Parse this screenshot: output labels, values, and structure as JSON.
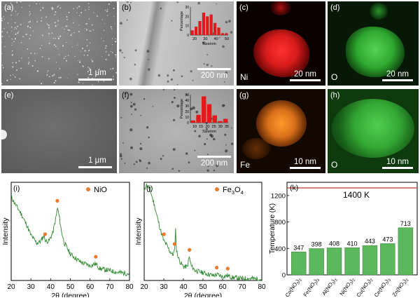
{
  "panels": {
    "a": {
      "label": "(a)",
      "scale": "1 μm"
    },
    "b": {
      "label": "(b)",
      "scale": "200 nm",
      "hist": {
        "ylabel": "Percentage",
        "xlabel": "Size/nm",
        "yticks": [
          "0",
          "10",
          "20",
          "30"
        ],
        "xticks": [
          "20",
          "30",
          "40",
          "50"
        ],
        "values": [
          5,
          9,
          15,
          24,
          20,
          22,
          13,
          8,
          2,
          2
        ]
      }
    },
    "c": {
      "label": "(c)",
      "element": "Ni",
      "scale": "20 nm"
    },
    "d": {
      "label": "(d)",
      "element": "O",
      "scale": "20 nm"
    },
    "e": {
      "label": "(e)",
      "scale": "1 μm"
    },
    "f": {
      "label": "(f)",
      "scale": "200 nm",
      "hist": {
        "ylabel": "Percentage",
        "xlabel": "Size/nm",
        "yticks": [
          "0",
          "10",
          "20",
          "30",
          "40",
          "50"
        ],
        "xticks": [
          "10",
          "15",
          "20",
          "25",
          "30",
          "35"
        ],
        "values": [
          4,
          14,
          47,
          33,
          13,
          3,
          7
        ]
      }
    },
    "g": {
      "label": "(g)",
      "element": "Fe",
      "scale": "10 nm"
    },
    "h": {
      "label": "(h)",
      "element": "O",
      "scale": "10 nm"
    }
  },
  "chart_data": [
    {
      "type": "line",
      "panel": "(i)",
      "legend": "NiO",
      "legend_position": "top-right",
      "xlabel": "2θ (degree)",
      "ylabel": "Intensity",
      "xlim": [
        20,
        80
      ],
      "xticks": [
        20,
        30,
        40,
        50,
        60,
        70,
        80
      ],
      "curve_x": [
        20,
        22,
        25,
        28,
        30,
        33,
        35,
        36.5,
        37.5,
        39,
        41,
        42.5,
        43.5,
        44.3,
        45.5,
        47,
        50,
        55,
        60,
        62.8,
        65,
        70,
        75,
        80
      ],
      "curve_y": [
        0.85,
        0.78,
        0.68,
        0.56,
        0.46,
        0.38,
        0.4,
        0.46,
        0.4,
        0.4,
        0.48,
        0.62,
        0.74,
        0.66,
        0.5,
        0.38,
        0.27,
        0.19,
        0.15,
        0.17,
        0.12,
        0.1,
        0.08,
        0.07
      ],
      "peaks": [
        37.2,
        43.4,
        62.9
      ]
    },
    {
      "type": "line",
      "panel": "(j)",
      "legend": "Fe3O4",
      "legend_main": "Fe",
      "legend_sub1": "3",
      "legend_mid": "O",
      "legend_sub2": "4",
      "legend_position": "top-right",
      "xlabel": "2θ (degree)",
      "ylabel": "Intensity",
      "xlim": [
        20,
        80
      ],
      "xticks": [
        20,
        30,
        40,
        50,
        60,
        70,
        80
      ],
      "curve_x": [
        20,
        21,
        23,
        25,
        27,
        28.5,
        30,
        31.5,
        33,
        34.5,
        35.5,
        36,
        36.5,
        38,
        40,
        42,
        43,
        44,
        46,
        50,
        55,
        57,
        60,
        62.5,
        65,
        70,
        75,
        80
      ],
      "curve_y": [
        0.9,
        0.98,
        0.93,
        0.78,
        0.62,
        0.5,
        0.4,
        0.36,
        0.3,
        0.26,
        0.3,
        0.52,
        0.3,
        0.2,
        0.14,
        0.14,
        0.24,
        0.15,
        0.1,
        0.08,
        0.05,
        0.06,
        0.04,
        0.05,
        0.03,
        0.02,
        0.02,
        0.01
      ],
      "peaks": [
        30.1,
        35.5,
        43.1,
        57.0,
        62.6
      ]
    },
    {
      "type": "bar",
      "panel": "(k)",
      "ylabel": "Temperature (K)",
      "ylim": [
        0,
        1400
      ],
      "yticks": [
        0,
        400,
        800,
        1200
      ],
      "reference_label": "1400 K",
      "reference_value": 1400,
      "categories": [
        {
          "main": "Co(NO",
          "sub": "3",
          "tail": ")",
          "sub2": "2"
        },
        {
          "main": "Fe(NO",
          "sub": "3",
          "tail": ")",
          "sub2": "3"
        },
        {
          "main": "Al(NO",
          "sub": "3",
          "tail": ")",
          "sub2": "3"
        },
        {
          "main": "Ni(NO",
          "sub": "3",
          "tail": ")",
          "sub2": "2"
        },
        {
          "main": "Cu(NO",
          "sub": "3",
          "tail": ")",
          "sub2": "2"
        },
        {
          "main": "Ce(NO",
          "sub": "3",
          "tail": ")",
          "sub2": "3"
        },
        {
          "main": "Zn(NO",
          "sub": "3",
          "tail": ")",
          "sub2": "2"
        }
      ],
      "values": [
        347,
        398,
        408,
        410,
        443,
        473,
        713
      ],
      "value_labels": [
        "347",
        "398",
        "408",
        "410",
        "443",
        "473",
        "713"
      ],
      "bar_color": "#5cb85c",
      "reference_color": "#c0392b"
    }
  ],
  "colors": {
    "peak_marker": "#ea7b2c",
    "curve": "#2e8b2e"
  }
}
